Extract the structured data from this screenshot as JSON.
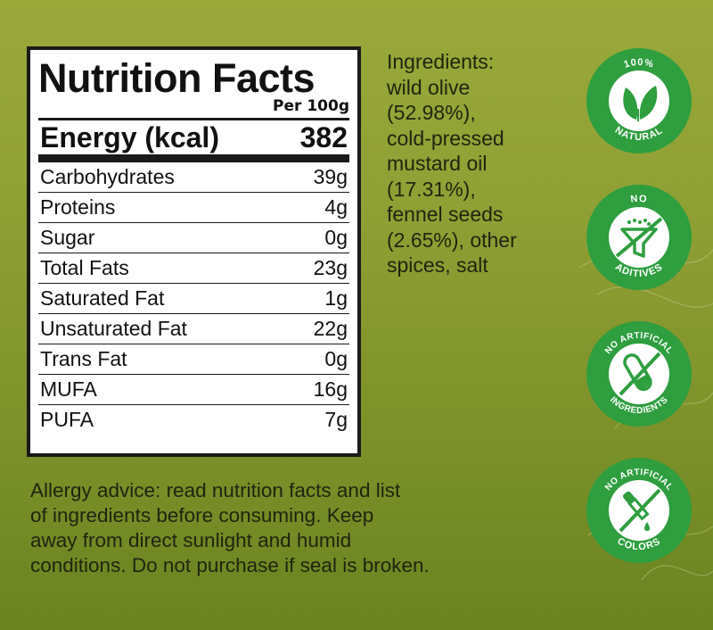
{
  "nutrition": {
    "title": "Nutrition Facts",
    "per": "Per 100g",
    "energy_label": "Energy (kcal)",
    "energy_value": "382",
    "rows": [
      {
        "label": "Carbohydrates",
        "value": "39g"
      },
      {
        "label": "Proteins",
        "value": "4g"
      },
      {
        "label": "Sugar",
        "value": "0g"
      },
      {
        "label": "Total Fats",
        "value": "23g"
      },
      {
        "label": "Saturated Fat",
        "value": "1g"
      },
      {
        "label": "Unsaturated Fat",
        "value": "22g"
      },
      {
        "label": "Trans Fat",
        "value": "0g"
      },
      {
        "label": "MUFA",
        "value": "16g"
      },
      {
        "label": "PUFA",
        "value": "7g"
      }
    ]
  },
  "ingredients": {
    "lines": [
      "Ingredients:",
      "wild olive",
      "(52.98%),",
      "cold-pressed",
      "mustard oil",
      "(17.31%),",
      "fennel seeds",
      "(2.65%), other",
      "spices, salt"
    ]
  },
  "allergy": {
    "lines": [
      "Allergy advice: read nutrition facts and list",
      "of ingredients before consuming. Keep",
      "away from direct sunlight and humid",
      "conditions. Do not purchase if seal is broken."
    ]
  },
  "badges": [
    {
      "top_text": "100%",
      "bottom_text": "NATURAL",
      "icon": "leaves-icon"
    },
    {
      "top_text": "NO",
      "bottom_text": "ADITIVES",
      "icon": "funnel-icon"
    },
    {
      "top_text": "NO ARTIFICIAL",
      "bottom_text": "INGREDIENTS",
      "icon": "test-tube-icon"
    },
    {
      "top_text": "NO ARTIFICIAL",
      "bottom_text": "COLORS",
      "icon": "dropper-icon"
    }
  ],
  "colors": {
    "badge_green": "#2e9e3f",
    "badge_ring": "#ffffff",
    "text_dark": "#1f2410"
  }
}
